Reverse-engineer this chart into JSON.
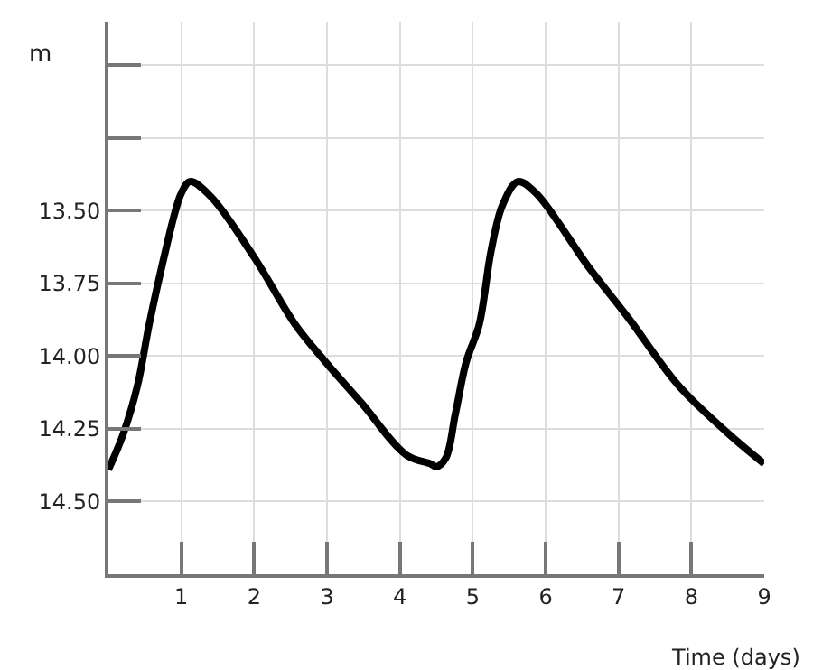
{
  "chart_data": {
    "type": "line",
    "xlabel": "Time (days)",
    "ylabel": "m",
    "x": [
      0,
      0.2,
      0.4,
      0.56,
      0.8,
      0.92,
      1.0,
      1.12,
      1.4,
      2.0,
      2.56,
      2.98,
      3.47,
      4.09,
      4.42,
      4.5,
      4.63,
      4.76,
      4.91,
      5.09,
      5.25,
      5.41,
      5.62,
      5.87,
      6.58,
      7.14,
      7.82,
      8.48,
      9
    ],
    "series": [
      {
        "color": "#000000",
        "values": [
          14.39,
          14.27,
          14.1,
          13.89,
          13.62,
          13.5,
          13.44,
          13.4,
          13.45,
          13.66,
          13.89,
          14.02,
          14.16,
          14.34,
          14.37,
          14.38,
          14.35,
          14.2,
          14.02,
          13.89,
          13.64,
          13.48,
          13.4,
          13.44,
          13.69,
          13.87,
          14.1,
          14.26,
          14.37
        ]
      }
    ],
    "xlim": [
      0,
      9
    ],
    "xticks": [
      1,
      2,
      3,
      4,
      5,
      6,
      7,
      8,
      9
    ],
    "ylim": [
      14.75,
      12.85
    ],
    "yticks": [
      {
        "value": 13.0,
        "label": null
      },
      {
        "value": 13.25,
        "label": null
      },
      {
        "value": 13.5,
        "label": "13.50"
      },
      {
        "value": 13.75,
        "label": "13.75"
      },
      {
        "value": 14.0,
        "label": "14.00"
      },
      {
        "value": 14.25,
        "label": "14.25"
      },
      {
        "value": 14.5,
        "label": "14.50"
      }
    ],
    "grid": true,
    "line_style": "solid"
  }
}
